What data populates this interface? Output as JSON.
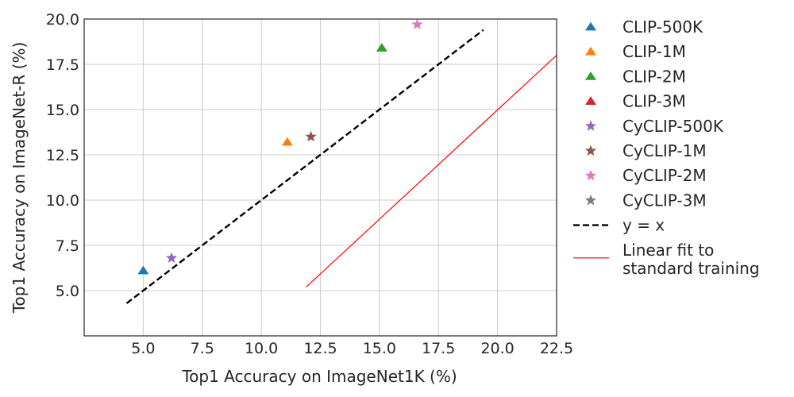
{
  "chart_data": {
    "type": "scatter",
    "xlabel": "Top1 Accuracy on ImageNet1K (%)",
    "ylabel": "Top1 Accuracy on ImageNet-R (%)",
    "xlim": [
      2.5,
      22.5
    ],
    "ylim": [
      2.5,
      20.0
    ],
    "xticks": [
      5.0,
      7.5,
      10.0,
      12.5,
      15.0,
      17.5,
      20.0,
      22.5
    ],
    "yticks": [
      5.0,
      7.5,
      10.0,
      12.5,
      15.0,
      17.5,
      20.0
    ],
    "xtick_labels": [
      "5.0",
      "7.5",
      "10.0",
      "12.5",
      "15.0",
      "17.5",
      "20.0",
      "22.5"
    ],
    "ytick_labels": [
      "5.0",
      "7.5",
      "10.0",
      "12.5",
      "15.0",
      "17.5",
      "20.0"
    ],
    "grid": true,
    "legend_position": "outside-right",
    "series": [
      {
        "name": "CLIP-500K",
        "marker": "triangle",
        "color": "#1f77b4",
        "points": [
          {
            "x": 5.0,
            "y": 6.1
          }
        ]
      },
      {
        "name": "CLIP-1M",
        "marker": "triangle",
        "color": "#ff7f0e",
        "points": [
          {
            "x": 11.1,
            "y": 13.2
          }
        ]
      },
      {
        "name": "CLIP-2M",
        "marker": "triangle",
        "color": "#2ca02c",
        "points": [
          {
            "x": 15.1,
            "y": 18.4
          }
        ]
      },
      {
        "name": "CLIP-3M",
        "marker": "triangle",
        "color": "#d62728",
        "points": []
      },
      {
        "name": "CyCLIP-500K",
        "marker": "star",
        "color": "#9467bd",
        "points": [
          {
            "x": 6.2,
            "y": 6.8
          }
        ]
      },
      {
        "name": "CyCLIP-1M",
        "marker": "star",
        "color": "#8c564b",
        "points": [
          {
            "x": 12.1,
            "y": 13.5
          }
        ]
      },
      {
        "name": "CyCLIP-2M",
        "marker": "star",
        "color": "#e377c2",
        "points": [
          {
            "x": 16.6,
            "y": 19.7
          }
        ]
      },
      {
        "name": "CyCLIP-3M",
        "marker": "star",
        "color": "#7f7f7f",
        "points": []
      }
    ],
    "lines": [
      {
        "name": "y = x",
        "style": "dashed",
        "color": "#000000",
        "x": [
          4.3,
          19.4
        ],
        "y": [
          4.3,
          19.4
        ]
      },
      {
        "name": "Linear fit to standard training",
        "style": "solid",
        "color": "#ff0000",
        "x": [
          11.9,
          22.5
        ],
        "y": [
          5.2,
          18.0
        ]
      }
    ],
    "legend": [
      {
        "label": "CLIP-500K",
        "type": "triangle",
        "color": "#1f77b4"
      },
      {
        "label": "CLIP-1M",
        "type": "triangle",
        "color": "#ff7f0e"
      },
      {
        "label": "CLIP-2M",
        "type": "triangle",
        "color": "#2ca02c"
      },
      {
        "label": "CLIP-3M",
        "type": "triangle",
        "color": "#d62728"
      },
      {
        "label": "CyCLIP-500K",
        "type": "star",
        "color": "#9467bd"
      },
      {
        "label": "CyCLIP-1M",
        "type": "star",
        "color": "#8c564b"
      },
      {
        "label": "CyCLIP-2M",
        "type": "star",
        "color": "#e377c2"
      },
      {
        "label": "CyCLIP-3M",
        "type": "star",
        "color": "#7f7f7f"
      },
      {
        "label": "y = x",
        "type": "dashed",
        "color": "#000000"
      },
      {
        "label": "Linear fit to\nstandard training",
        "type": "solid",
        "color": "#ff0000"
      }
    ]
  }
}
